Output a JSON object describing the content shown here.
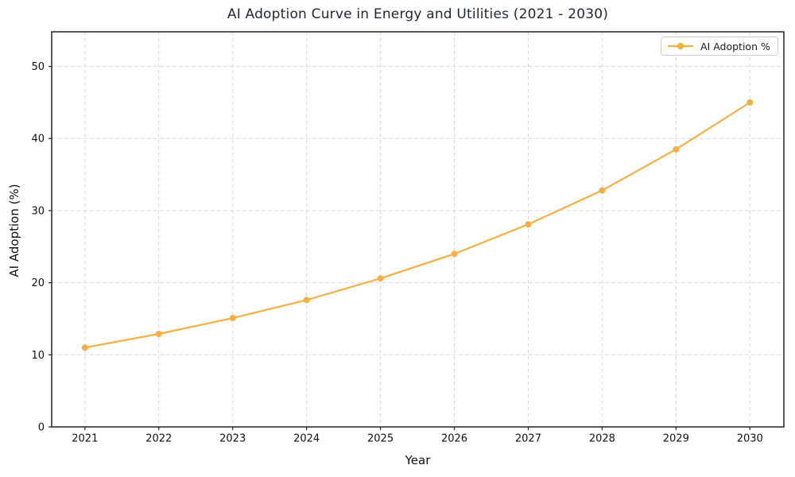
{
  "chart_data": {
    "type": "line",
    "title": "AI Adoption Curve in Energy and Utilities (2021 - 2030)",
    "xlabel": "Year",
    "ylabel": "AI Adoption (%)",
    "categories": [
      2021,
      2022,
      2023,
      2024,
      2025,
      2026,
      2027,
      2028,
      2029,
      2030
    ],
    "series": [
      {
        "name": "AI Adoption %",
        "values": [
          11.0,
          12.9,
          15.1,
          17.6,
          20.6,
          24.0,
          28.1,
          32.8,
          38.5,
          45.0
        ],
        "color": "#F5B041"
      }
    ],
    "yticks": [
      0,
      10,
      20,
      30,
      40,
      50
    ],
    "xlim": [
      2020.55,
      2030.46
    ],
    "ylim": [
      0,
      54.8
    ],
    "grid": true,
    "grid_color": "#d6d6d6",
    "spine_color": "#000000",
    "tick_color": "#222222",
    "title_color": "#1f2633",
    "legend_position": "upper right",
    "marker": "circle",
    "line_width": 2.2,
    "marker_radius": 4
  }
}
